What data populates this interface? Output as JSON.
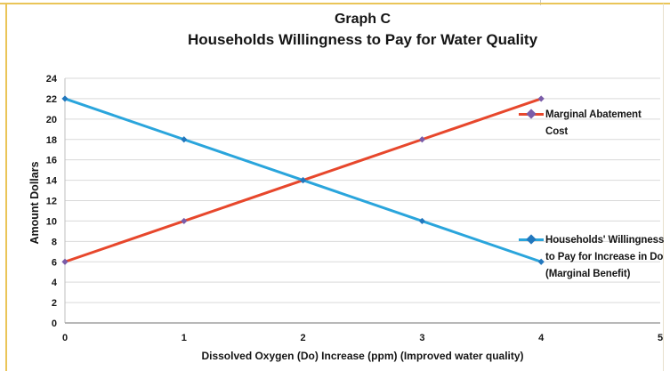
{
  "chart_data": {
    "type": "line",
    "title": "Graph C",
    "subtitle": "Households Willingness to Pay for Water Quality",
    "xlabel": "Dissolved Oxygen (Do) Increase (ppm) (Improved water quality)",
    "ylabel": "Amount Dollars",
    "xlim": [
      0,
      5
    ],
    "ylim": [
      0,
      24
    ],
    "x_ticks": [
      0,
      1,
      2,
      3,
      4,
      5
    ],
    "y_ticks": [
      0,
      2,
      4,
      6,
      8,
      10,
      12,
      14,
      16,
      18,
      20,
      22,
      24
    ],
    "grid": "horizontal-only",
    "legend_position": "right-floating",
    "series": [
      {
        "name": "Marginal Abatement Cost",
        "legend_lines": [
          "Marginal Abatement",
          "Cost"
        ],
        "x": [
          0,
          1,
          2,
          3,
          4
        ],
        "values": [
          6,
          10,
          14,
          18,
          22
        ],
        "line_color": "#e7472c",
        "marker_color": "#7a5ca8",
        "marker": "diamond"
      },
      {
        "name": "Households' Willingness to Pay for Increase in Do (Marginal Benefit)",
        "legend_lines": [
          "Households' Willingness",
          "to Pay for Increase in Do",
          "(Marginal Benefit)"
        ],
        "x": [
          0,
          1,
          2,
          3,
          4
        ],
        "values": [
          22,
          18,
          14,
          10,
          6
        ],
        "line_color": "#2aa5dc",
        "marker_color": "#2277bd",
        "marker": "diamond"
      }
    ]
  },
  "frame": {
    "border_color": "#eac558",
    "grid_color": "#d9d9d9",
    "axis_color": "#a0a0a0",
    "y_axis_color": "#bfbfbf",
    "text_color": "#151515",
    "background": "#ffffff"
  }
}
